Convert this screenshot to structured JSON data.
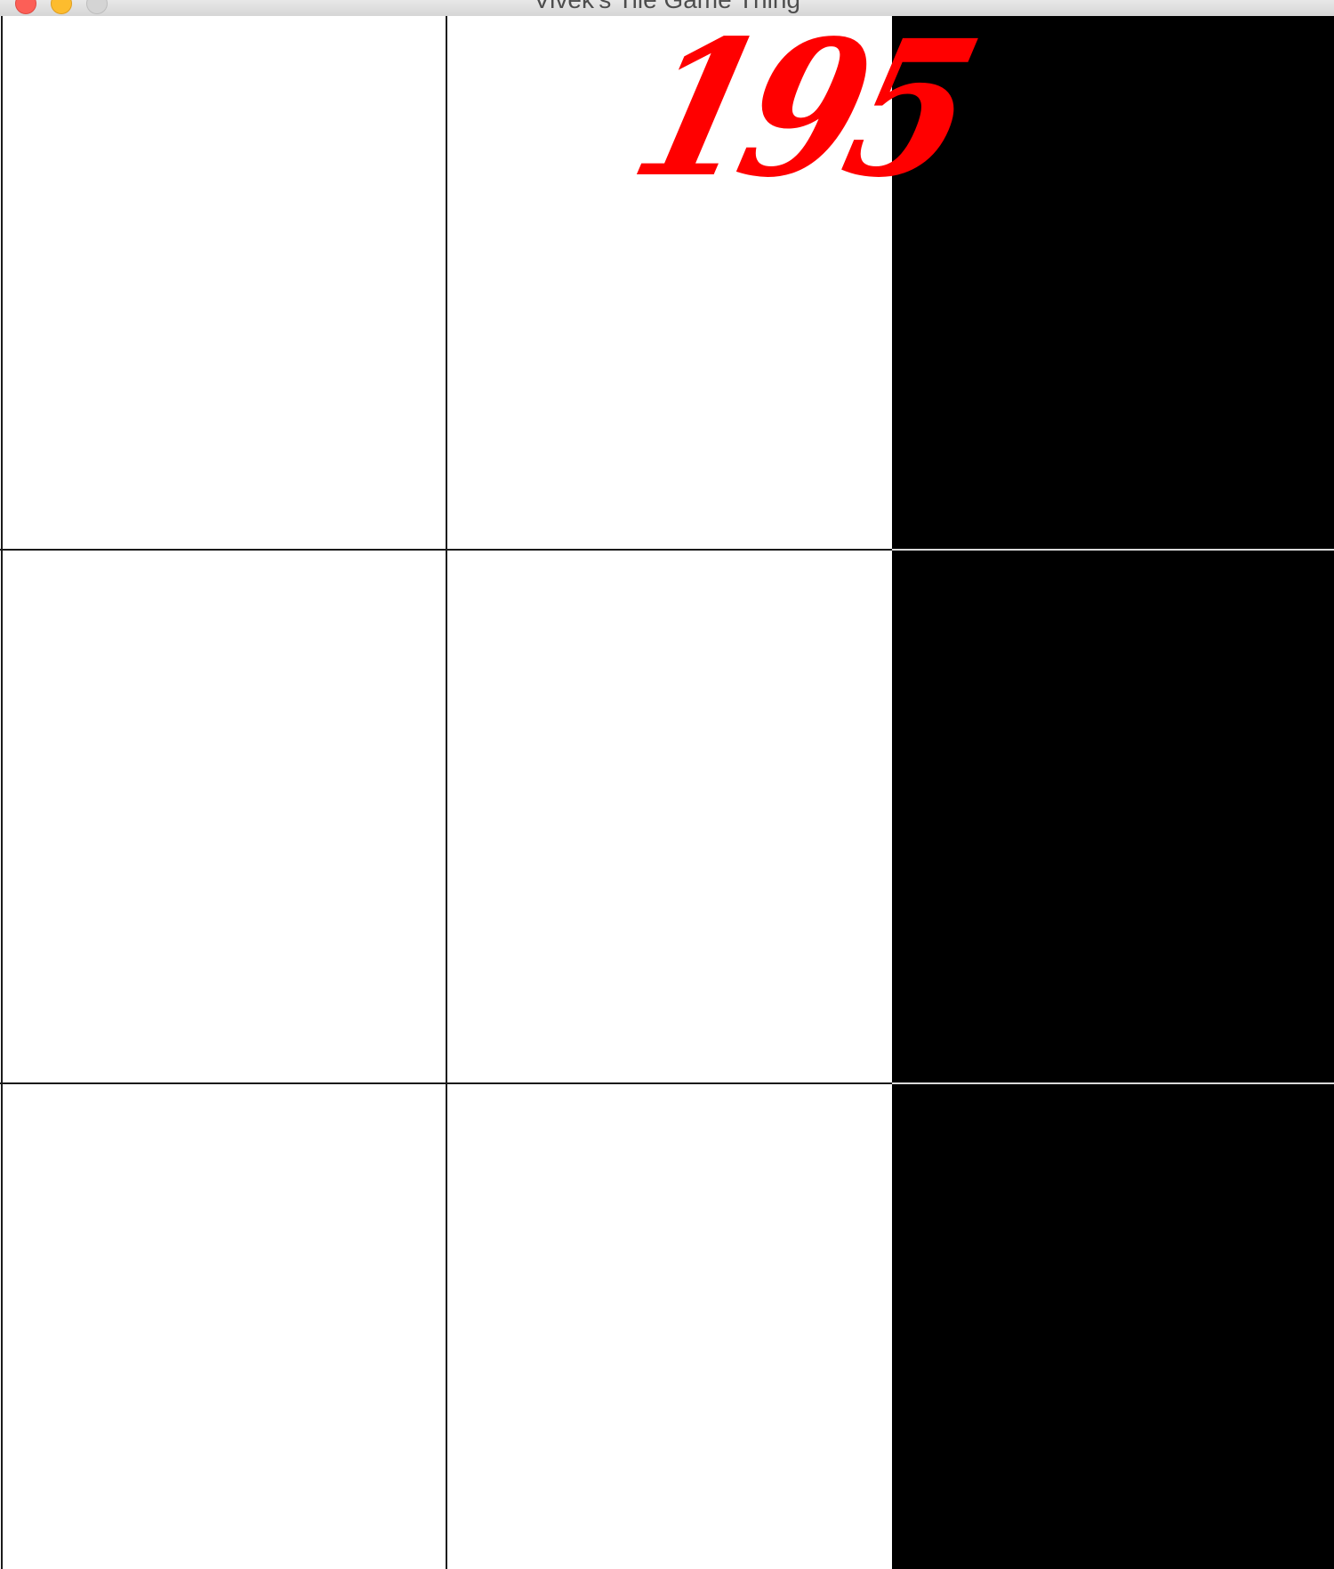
{
  "window": {
    "title": "Vivek's Tile Game Thing"
  },
  "game": {
    "score": "195",
    "grid": [
      [
        "white",
        "white",
        "black"
      ],
      [
        "white",
        "white",
        "black"
      ],
      [
        "white",
        "white",
        "black"
      ]
    ]
  },
  "colors": {
    "score": "#ff0000",
    "black_tile": "#000000",
    "white_tile": "#ffffff"
  }
}
